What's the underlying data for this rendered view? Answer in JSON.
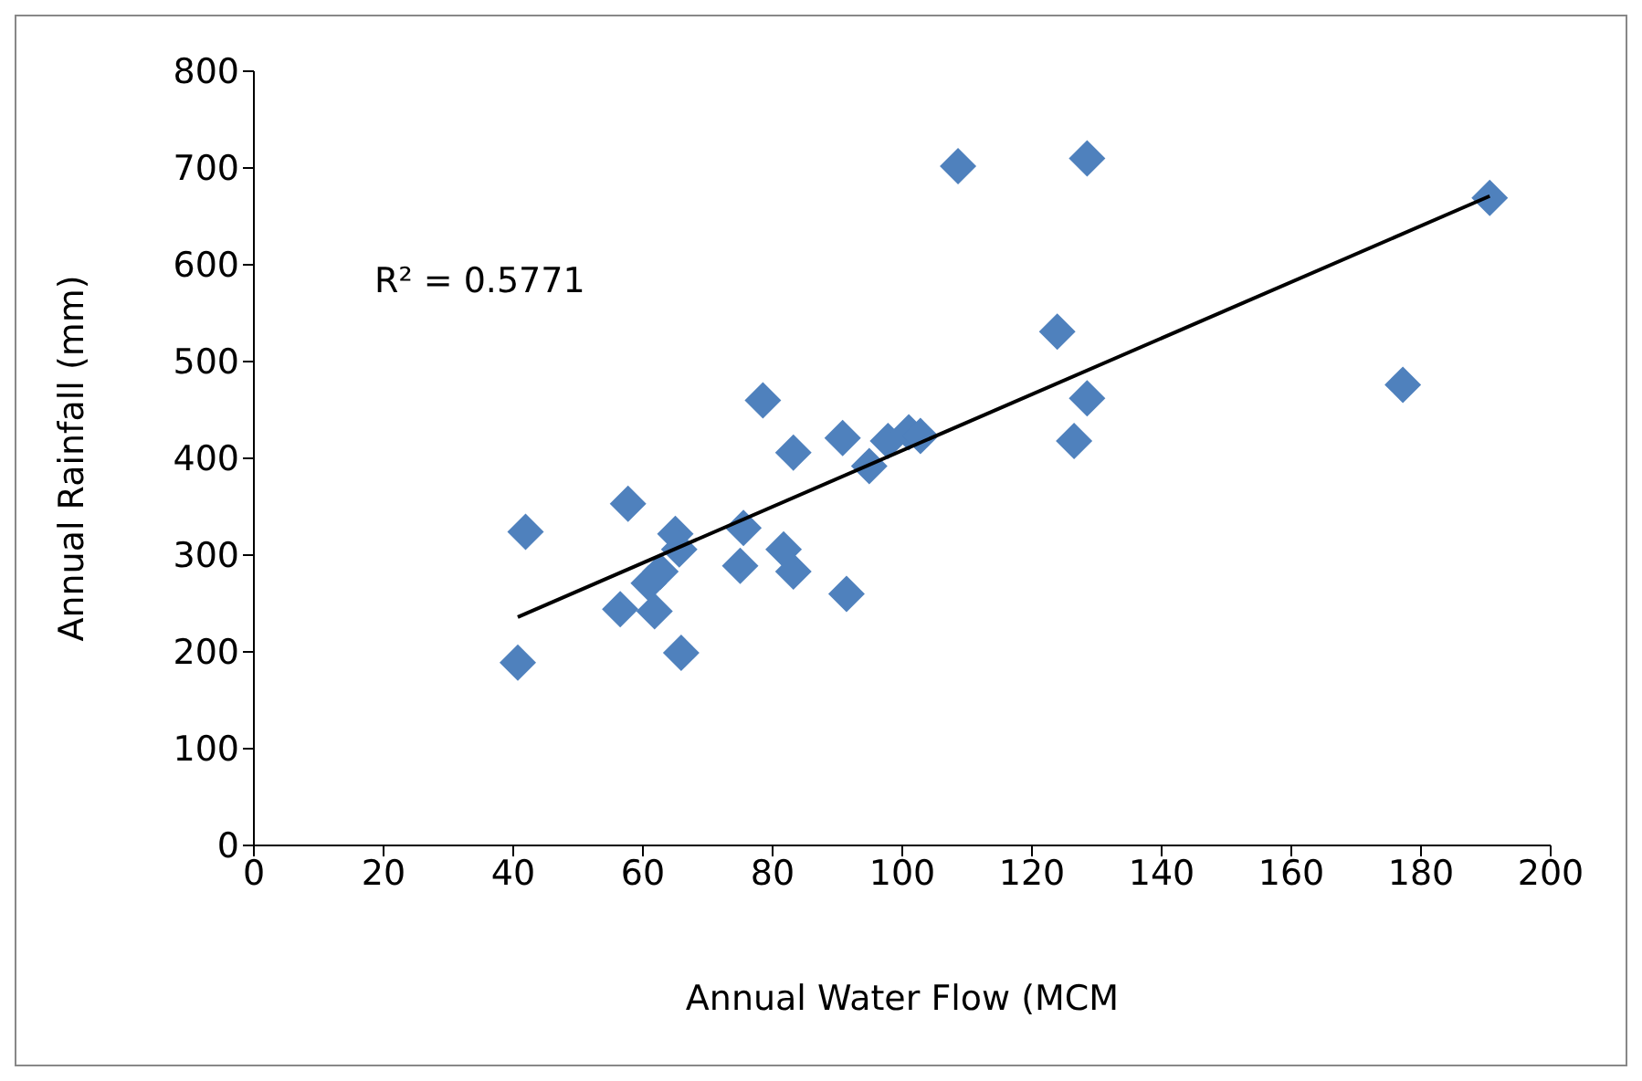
{
  "chart_data": {
    "type": "scatter",
    "xlabel": "Annual Water Flow (MCM",
    "ylabel": "Annual Rainfall (mm)",
    "annotations": [
      "R² = 0.5771"
    ],
    "xlim": [
      0,
      200
    ],
    "xticks": [
      0,
      20,
      40,
      60,
      80,
      100,
      120,
      140,
      160,
      180,
      200
    ],
    "ylim": [
      0,
      800
    ],
    "yticks": [
      0,
      100,
      200,
      300,
      400,
      500,
      600,
      700,
      800
    ],
    "grid": false,
    "legend": false,
    "series": [
      {
        "color": "#4f81bd",
        "marker": "diamond",
        "x": [
          40.7,
          41.9,
          56.5,
          57.7,
          60.9,
          61.8,
          62.7,
          65,
          65.9,
          65.6,
          75.5,
          75,
          78.5,
          81.7,
          83.2,
          83.2,
          90.8,
          91.4,
          94.9,
          97.8,
          101,
          102.8,
          108.6,
          123.9,
          126.5,
          128.5,
          128.5,
          177.2,
          190.6
        ],
        "values": [
          189,
          324,
          244,
          353,
          271,
          242,
          283,
          322,
          199,
          306,
          328,
          289,
          460,
          306,
          283,
          406,
          421,
          260,
          392,
          418,
          427,
          423,
          702,
          531,
          418,
          462,
          710,
          476,
          669
        ]
      },
      {
        "type": "line",
        "color": "#000000",
        "marker": "none",
        "line_style": "solid",
        "x": [
          40.7,
          190.6
        ],
        "values": [
          236,
          671
        ]
      }
    ]
  }
}
